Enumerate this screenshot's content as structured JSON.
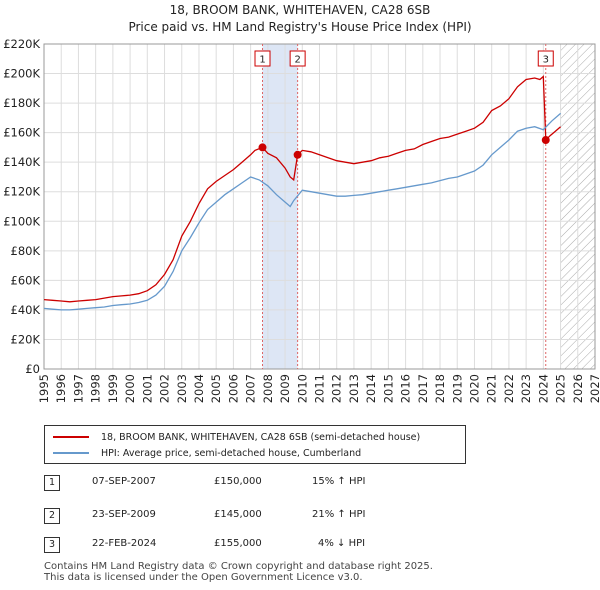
{
  "title_line1": "18, BROOM BANK, WHITEHAVEN, CA28 6SB",
  "title_line2": "Price paid vs. HM Land Registry's House Price Index (HPI)",
  "chart_data": {
    "type": "line",
    "title": "18, BROOM BANK, WHITEHAVEN, CA28 6SB — Price paid vs. HM Land Registry's House Price Index (HPI)",
    "xlabel": "",
    "ylabel": "",
    "xlim": [
      1995,
      2027
    ],
    "ylim": [
      0,
      220000
    ],
    "grid": true,
    "x_ticks": [
      "1995",
      "1996",
      "1997",
      "1998",
      "1999",
      "2000",
      "2001",
      "2002",
      "2003",
      "2004",
      "2005",
      "2006",
      "2007",
      "2008",
      "2009",
      "2010",
      "2011",
      "2012",
      "2013",
      "2014",
      "2015",
      "2016",
      "2017",
      "2018",
      "2019",
      "2020",
      "2021",
      "2022",
      "2023",
      "2024",
      "2025",
      "2026",
      "2027"
    ],
    "y_ticks": [
      "£0",
      "£20K",
      "£40K",
      "£60K",
      "£80K",
      "£100K",
      "£120K",
      "£140K",
      "£160K",
      "£180K",
      "£200K",
      "£220K"
    ],
    "y_tick_values": [
      0,
      20000,
      40000,
      60000,
      80000,
      100000,
      120000,
      140000,
      160000,
      180000,
      200000,
      220000
    ],
    "series": [
      {
        "name": "18, BROOM BANK, WHITEHAVEN, CA28 6SB (semi-detached house)",
        "color": "#cc0000",
        "x": [
          1995.0,
          1995.5,
          1996.0,
          1996.5,
          1997.0,
          1997.5,
          1998.0,
          1998.5,
          1999.0,
          1999.5,
          2000.0,
          2000.5,
          2001.0,
          2001.5,
          2002.0,
          2002.5,
          2003.0,
          2003.5,
          2004.0,
          2004.5,
          2005.0,
          2005.5,
          2006.0,
          2006.5,
          2007.0,
          2007.25,
          2007.69,
          2008.0,
          2008.5,
          2009.0,
          2009.3,
          2009.5,
          2009.73,
          2010.0,
          2010.5,
          2011.0,
          2011.5,
          2012.0,
          2012.5,
          2013.0,
          2013.5,
          2014.0,
          2014.5,
          2015.0,
          2015.5,
          2016.0,
          2016.5,
          2017.0,
          2017.5,
          2018.0,
          2018.5,
          2019.0,
          2019.5,
          2020.0,
          2020.5,
          2021.0,
          2021.5,
          2022.0,
          2022.5,
          2023.0,
          2023.5,
          2023.8,
          2024.0,
          2024.14,
          2024.4,
          2024.7,
          2025.0
        ],
        "y": [
          47000,
          46500,
          46000,
          45500,
          46000,
          46500,
          47000,
          48000,
          49000,
          49500,
          50000,
          51000,
          53000,
          57000,
          64000,
          74000,
          90000,
          100000,
          112000,
          122000,
          127000,
          131000,
          135000,
          140000,
          145000,
          148000,
          150000,
          146000,
          143000,
          136000,
          130000,
          128000,
          145000,
          148000,
          147000,
          145000,
          143000,
          141000,
          140000,
          139000,
          140000,
          141000,
          143000,
          144000,
          146000,
          148000,
          149000,
          152000,
          154000,
          156000,
          157000,
          159000,
          161000,
          163000,
          167000,
          175000,
          178000,
          183000,
          191000,
          196000,
          197000,
          196000,
          198000,
          155000,
          158000,
          161000,
          164000
        ]
      },
      {
        "name": "HPI: Average price, semi-detached house, Cumberland",
        "color": "#6699cc",
        "x": [
          1995.0,
          1995.5,
          1996.0,
          1996.5,
          1997.0,
          1997.5,
          1998.0,
          1998.5,
          1999.0,
          1999.5,
          2000.0,
          2000.5,
          2001.0,
          2001.5,
          2002.0,
          2002.5,
          2003.0,
          2003.5,
          2004.0,
          2004.5,
          2005.0,
          2005.5,
          2006.0,
          2006.5,
          2007.0,
          2007.5,
          2008.0,
          2008.5,
          2009.0,
          2009.3,
          2009.5,
          2010.0,
          2010.5,
          2011.0,
          2011.5,
          2012.0,
          2012.5,
          2013.0,
          2013.5,
          2014.0,
          2014.5,
          2015.0,
          2015.5,
          2016.0,
          2016.5,
          2017.0,
          2017.5,
          2018.0,
          2018.5,
          2019.0,
          2019.5,
          2020.0,
          2020.5,
          2021.0,
          2021.5,
          2022.0,
          2022.5,
          2023.0,
          2023.5,
          2024.0,
          2024.5,
          2025.0
        ],
        "y": [
          41000,
          40500,
          40000,
          40000,
          40500,
          41000,
          41500,
          42000,
          43000,
          43500,
          44000,
          45000,
          46500,
          50000,
          56000,
          66000,
          80000,
          89000,
          99000,
          108000,
          113000,
          118000,
          122000,
          126000,
          130000,
          128000,
          124000,
          118000,
          113000,
          110000,
          114000,
          121000,
          120000,
          119000,
          118000,
          117000,
          117000,
          117500,
          118000,
          119000,
          120000,
          121000,
          122000,
          123000,
          124000,
          125000,
          126000,
          127500,
          129000,
          130000,
          132000,
          134000,
          138000,
          145000,
          150000,
          155000,
          161000,
          163000,
          164000,
          162000,
          168000,
          173000
        ]
      }
    ],
    "sales": [
      {
        "num": "1",
        "x": 2007.69,
        "price": 150000,
        "date": "07-SEP-2007",
        "price_label": "£150,000",
        "hpi": "15% ↑ HPI"
      },
      {
        "num": "2",
        "x": 2009.73,
        "price": 145000,
        "date": "23-SEP-2009",
        "price_label": "£145,000",
        "hpi": "21% ↑ HPI"
      },
      {
        "num": "3",
        "x": 2024.14,
        "price": 155000,
        "date": "22-FEB-2024",
        "price_label": "£155,000",
        "hpi": "4% ↓ HPI"
      }
    ],
    "shaded_span": [
      2007.69,
      2009.73
    ],
    "forecast_from": 2025.0
  },
  "legend": {
    "red_label": "18, BROOM BANK, WHITEHAVEN, CA28 6SB (semi-detached house)",
    "blue_label": "HPI: Average price, semi-detached house, Cumberland"
  },
  "footer_line1": "Contains HM Land Registry data © Crown copyright and database right 2025.",
  "footer_line2": "This data is licensed under the Open Government Licence v3.0.",
  "colors": {
    "red": "#cc0000",
    "blue": "#6699cc",
    "shade": "#dde6f5",
    "grid": "#dddddd"
  }
}
